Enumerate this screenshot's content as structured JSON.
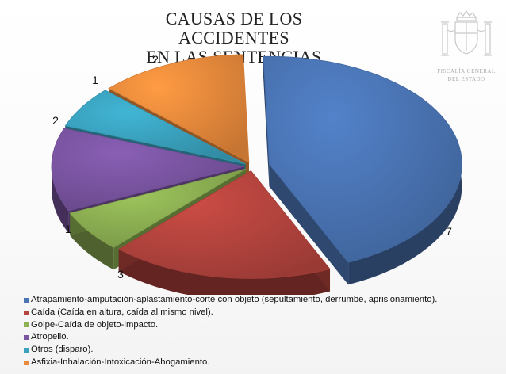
{
  "chart_data": {
    "type": "pie",
    "title_lines": [
      "CAUSAS DE LOS ACCIDENTES",
      "EN LAS SENTENCIAS"
    ],
    "slices": [
      {
        "label": "Atrapamiento-amputación-aplastamiento-corte con objeto (sepultamiento, derrumbe, aprisionamiento).",
        "value": 7,
        "value_label": "7",
        "color": "#4a74b4"
      },
      {
        "label": "Caída (Caída en altura, caída al mismo nivel).",
        "value": 3,
        "value_label": "3",
        "color": "#b5443e"
      },
      {
        "label": "Golpe-Caída de objeto-impacto.",
        "value": 1,
        "value_label": "1",
        "color": "#8db153"
      },
      {
        "label": "Atropello.",
        "value": 2,
        "value_label": "2",
        "color": "#7a55a2"
      },
      {
        "label": "Otros (disparo).",
        "value": 1,
        "value_label": "1",
        "color": "#3aa2be"
      },
      {
        "label": "Asfixia-Inhalación-Intoxicación-Ahogamiento.",
        "value": 2,
        "value_label": "2",
        "color": "#ea8a3c"
      }
    ],
    "legend_position": "bottom",
    "style": "3d-exploded"
  },
  "emblem": {
    "caption_lines": [
      "FISCALÍA GENERAL",
      "DEL ESTADO"
    ]
  }
}
